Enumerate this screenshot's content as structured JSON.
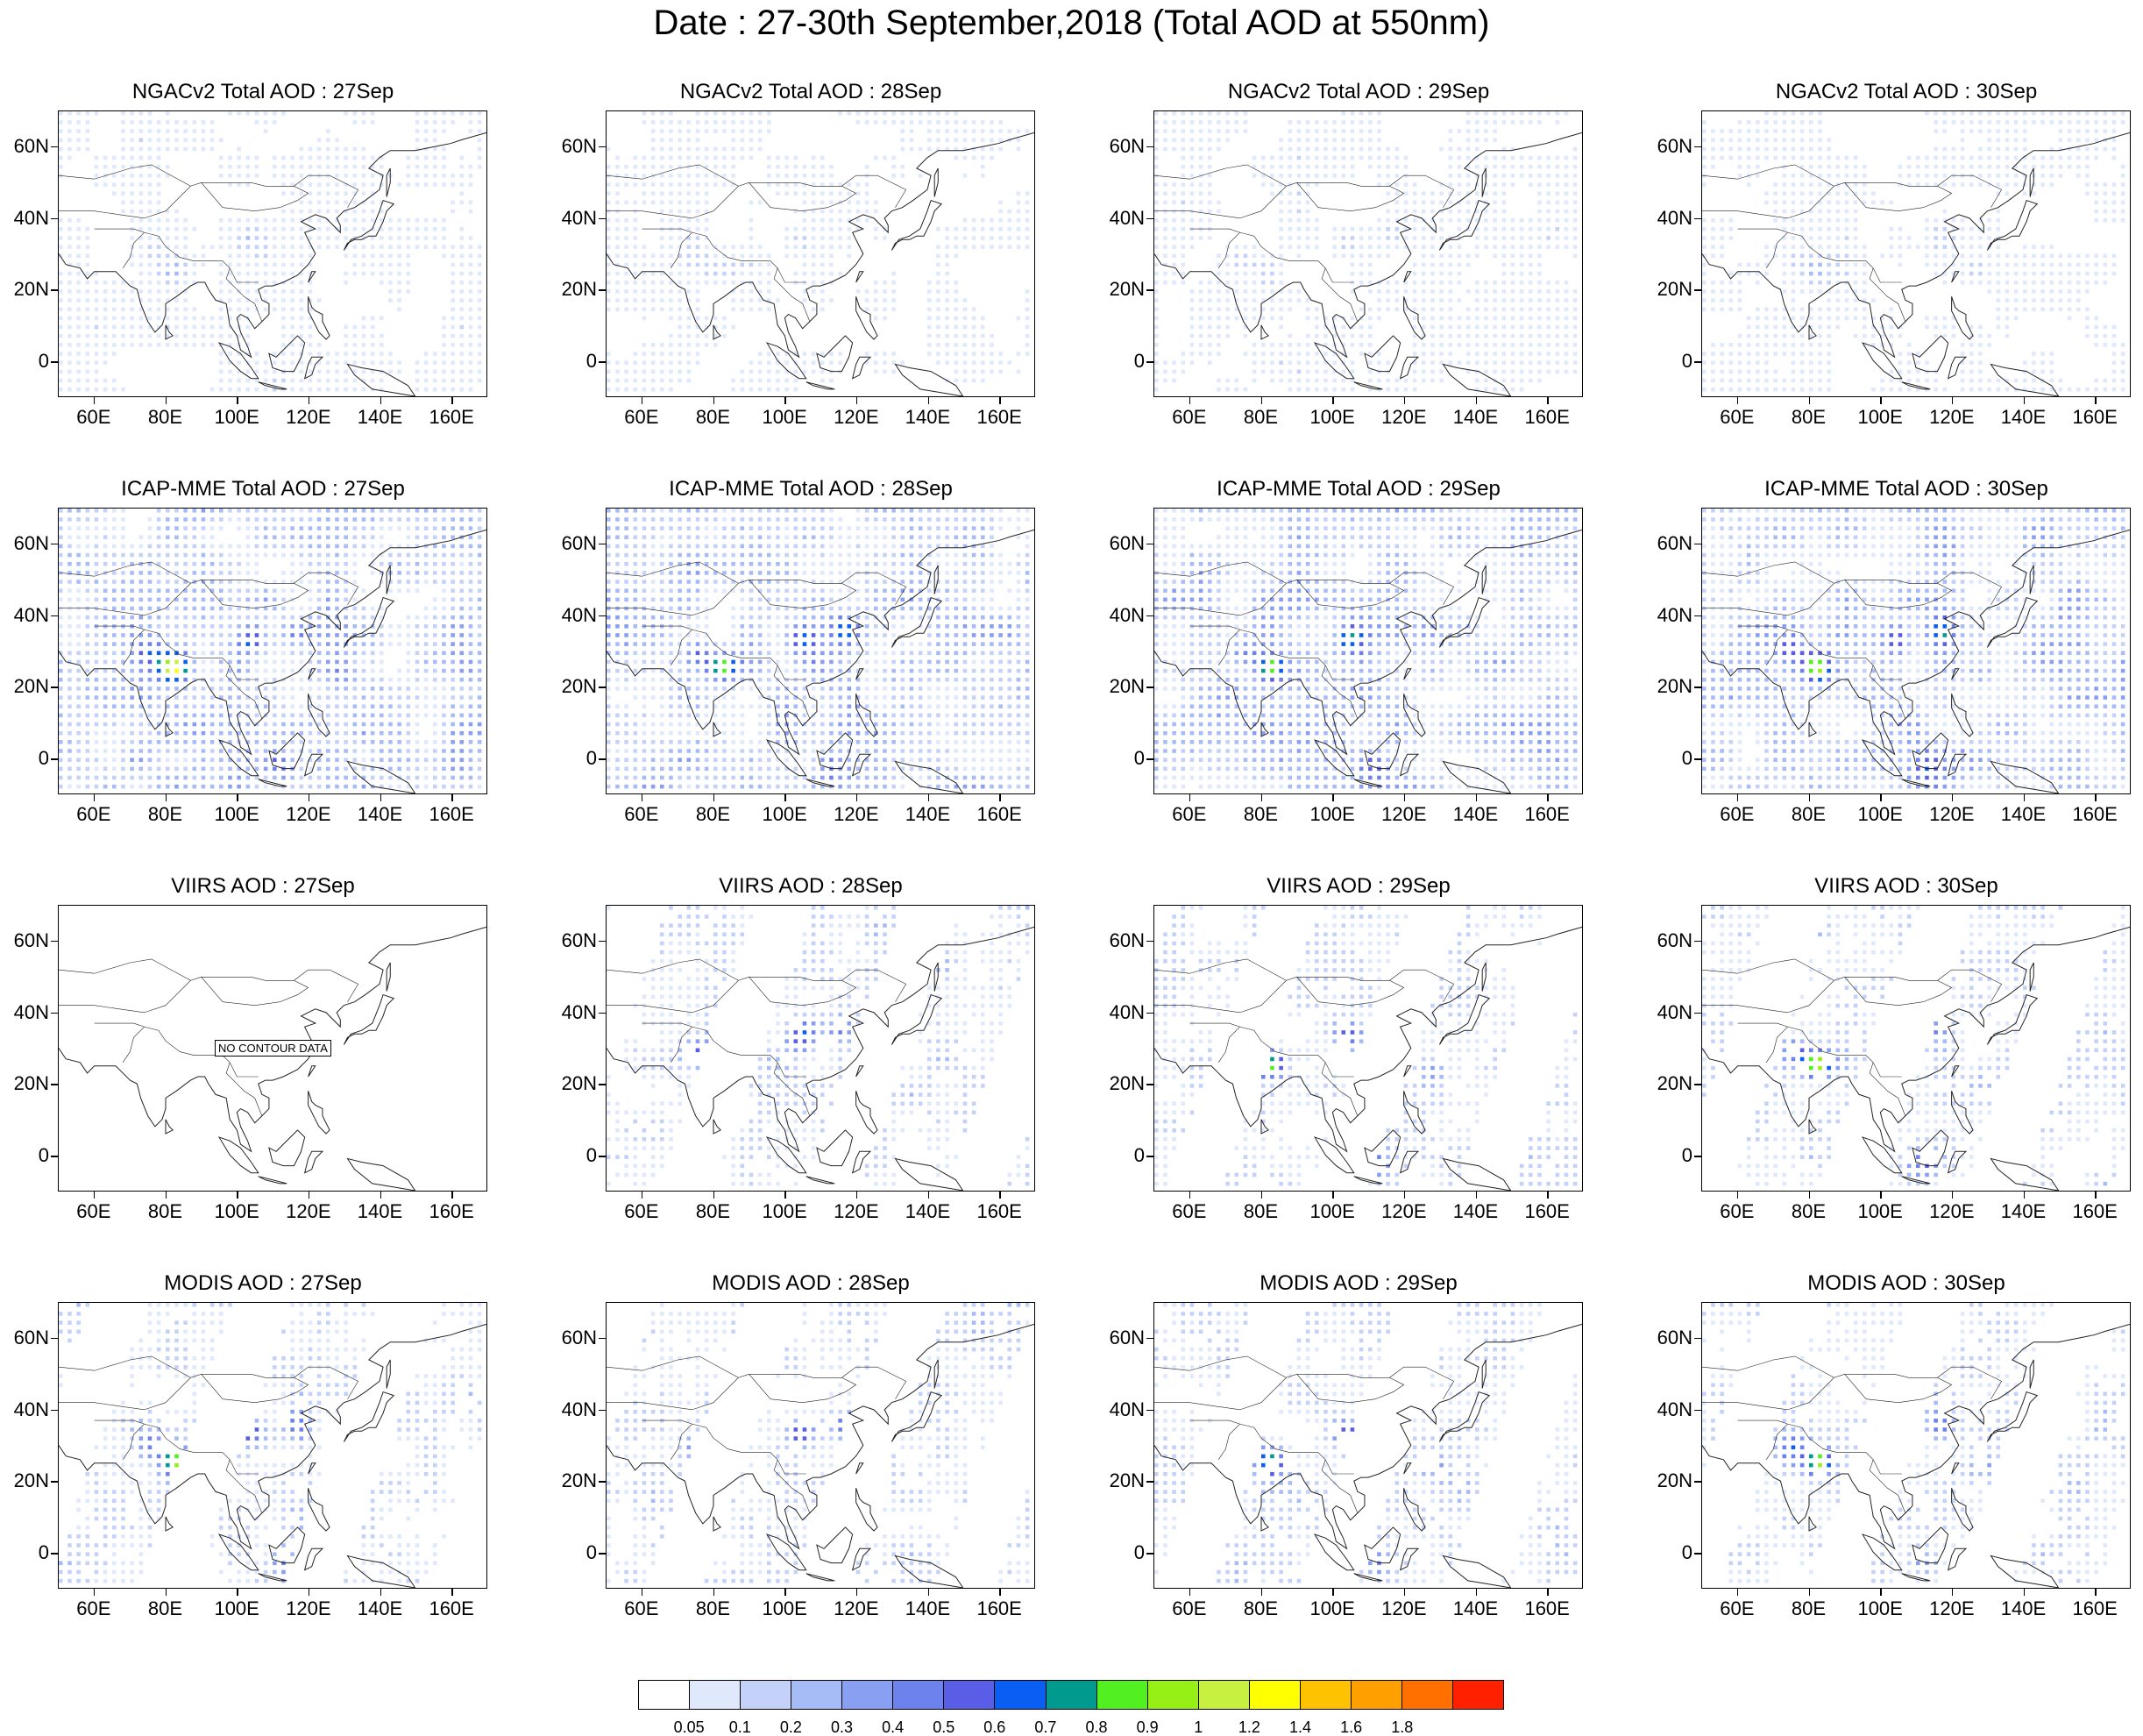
{
  "title": "Date : 27-30th September,2018 (Total AOD at 550nm)",
  "axes": {
    "x_ticks": [
      "60E",
      "80E",
      "100E",
      "120E",
      "140E",
      "160E"
    ],
    "x_values": [
      60,
      80,
      100,
      120,
      140,
      160
    ],
    "y_ticks": [
      "60N",
      "40N",
      "20N",
      "0"
    ],
    "y_values": [
      60,
      40,
      20,
      0
    ],
    "lon_range": [
      50,
      170
    ],
    "lat_range": [
      -10,
      70
    ]
  },
  "colorbar": {
    "colors": [
      "#ffffff",
      "#e0e8fc",
      "#c4d2fa",
      "#a6bcf6",
      "#889ff2",
      "#6e82ee",
      "#5a5ee6",
      "#0a5ef4",
      "#009a8e",
      "#52f020",
      "#96f016",
      "#c8f040",
      "#ffff00",
      "#ffc200",
      "#ffa000",
      "#ff7000",
      "#ff2000"
    ],
    "labels": [
      "0.05",
      "0.1",
      "0.2",
      "0.3",
      "0.4",
      "0.5",
      "0.6",
      "0.7",
      "0.8",
      "0.9",
      "1",
      "1.2",
      "1.4",
      "1.6",
      "1.8"
    ]
  },
  "panels": [
    {
      "title": "NGACv2 Total AOD : 27Sep",
      "has_data": true
    },
    {
      "title": "NGACv2 Total AOD : 28Sep",
      "has_data": true
    },
    {
      "title": "NGACv2 Total AOD : 29Sep",
      "has_data": true
    },
    {
      "title": "NGACv2 Total AOD : 30Sep",
      "has_data": true
    },
    {
      "title": "ICAP-MME Total AOD : 27Sep",
      "has_data": true
    },
    {
      "title": "ICAP-MME Total AOD : 28Sep",
      "has_data": true
    },
    {
      "title": "ICAP-MME Total AOD : 29Sep",
      "has_data": true
    },
    {
      "title": "ICAP-MME Total AOD : 30Sep",
      "has_data": true
    },
    {
      "title": "VIIRS AOD : 27Sep",
      "has_data": false,
      "note": "NO CONTOUR DATA"
    },
    {
      "title": "VIIRS AOD : 28Sep",
      "has_data": true
    },
    {
      "title": "VIIRS AOD : 29Sep",
      "has_data": true
    },
    {
      "title": "VIIRS AOD : 30Sep",
      "has_data": true
    },
    {
      "title": "MODIS AOD : 27Sep",
      "has_data": true
    },
    {
      "title": "MODIS AOD : 28Sep",
      "has_data": true
    },
    {
      "title": "MODIS AOD : 29Sep",
      "has_data": true
    },
    {
      "title": "MODIS AOD : 30Sep",
      "has_data": true
    }
  ]
}
